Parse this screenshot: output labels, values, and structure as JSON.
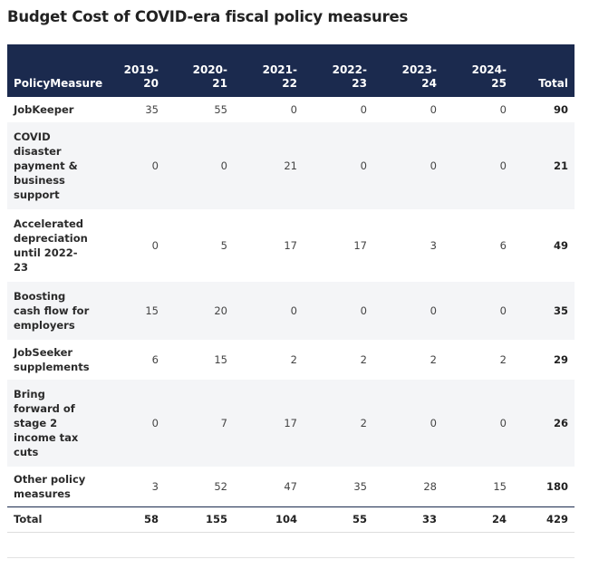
{
  "title": "Budget Cost of COVID-era fiscal policy measures",
  "chart_data": {
    "type": "table",
    "title": "Budget Cost of COVID-era fiscal policy measures",
    "columns": [
      {
        "lines": [
          "Policy",
          "Measure"
        ]
      },
      {
        "lines": [
          "2019-",
          "20"
        ]
      },
      {
        "lines": [
          "2020-",
          "21"
        ]
      },
      {
        "lines": [
          "2021-",
          "22"
        ]
      },
      {
        "lines": [
          "2022-",
          "23"
        ]
      },
      {
        "lines": [
          "2023-",
          "24"
        ]
      },
      {
        "lines": [
          "2024-",
          "25"
        ]
      },
      {
        "lines": [
          "Total"
        ]
      }
    ],
    "rows": [
      {
        "measure": "JobKeeper",
        "values": [
          "35",
          "55",
          "0",
          "0",
          "0",
          "0"
        ],
        "total": "90"
      },
      {
        "measure": "COVID disaster payment & business support",
        "values": [
          "0",
          "0",
          "21",
          "0",
          "0",
          "0"
        ],
        "total": "21"
      },
      {
        "measure": "Accelerated depreciation until 2022-23",
        "values": [
          "0",
          "5",
          "17",
          "17",
          "3",
          "6"
        ],
        "total": "49"
      },
      {
        "measure": "Boosting cash flow for employers",
        "values": [
          "15",
          "20",
          "0",
          "0",
          "0",
          "0"
        ],
        "total": "35"
      },
      {
        "measure": "JobSeeker supplements",
        "values": [
          "6",
          "15",
          "2",
          "2",
          "2",
          "2"
        ],
        "total": "29"
      },
      {
        "measure": "Bring forward of stage 2 income tax cuts",
        "values": [
          "0",
          "7",
          "17",
          "2",
          "0",
          "0"
        ],
        "total": "26"
      },
      {
        "measure": "Other policy measures",
        "values": [
          "3",
          "52",
          "47",
          "35",
          "28",
          "15"
        ],
        "total": "180"
      }
    ],
    "footer": {
      "label": "Total",
      "values": [
        "58",
        "155",
        "104",
        "55",
        "33",
        "24"
      ],
      "total": "429"
    }
  },
  "colors": {
    "header_bg": "#1b2a4e",
    "header_text": "#ffffff",
    "stripe": "#f4f5f7"
  }
}
